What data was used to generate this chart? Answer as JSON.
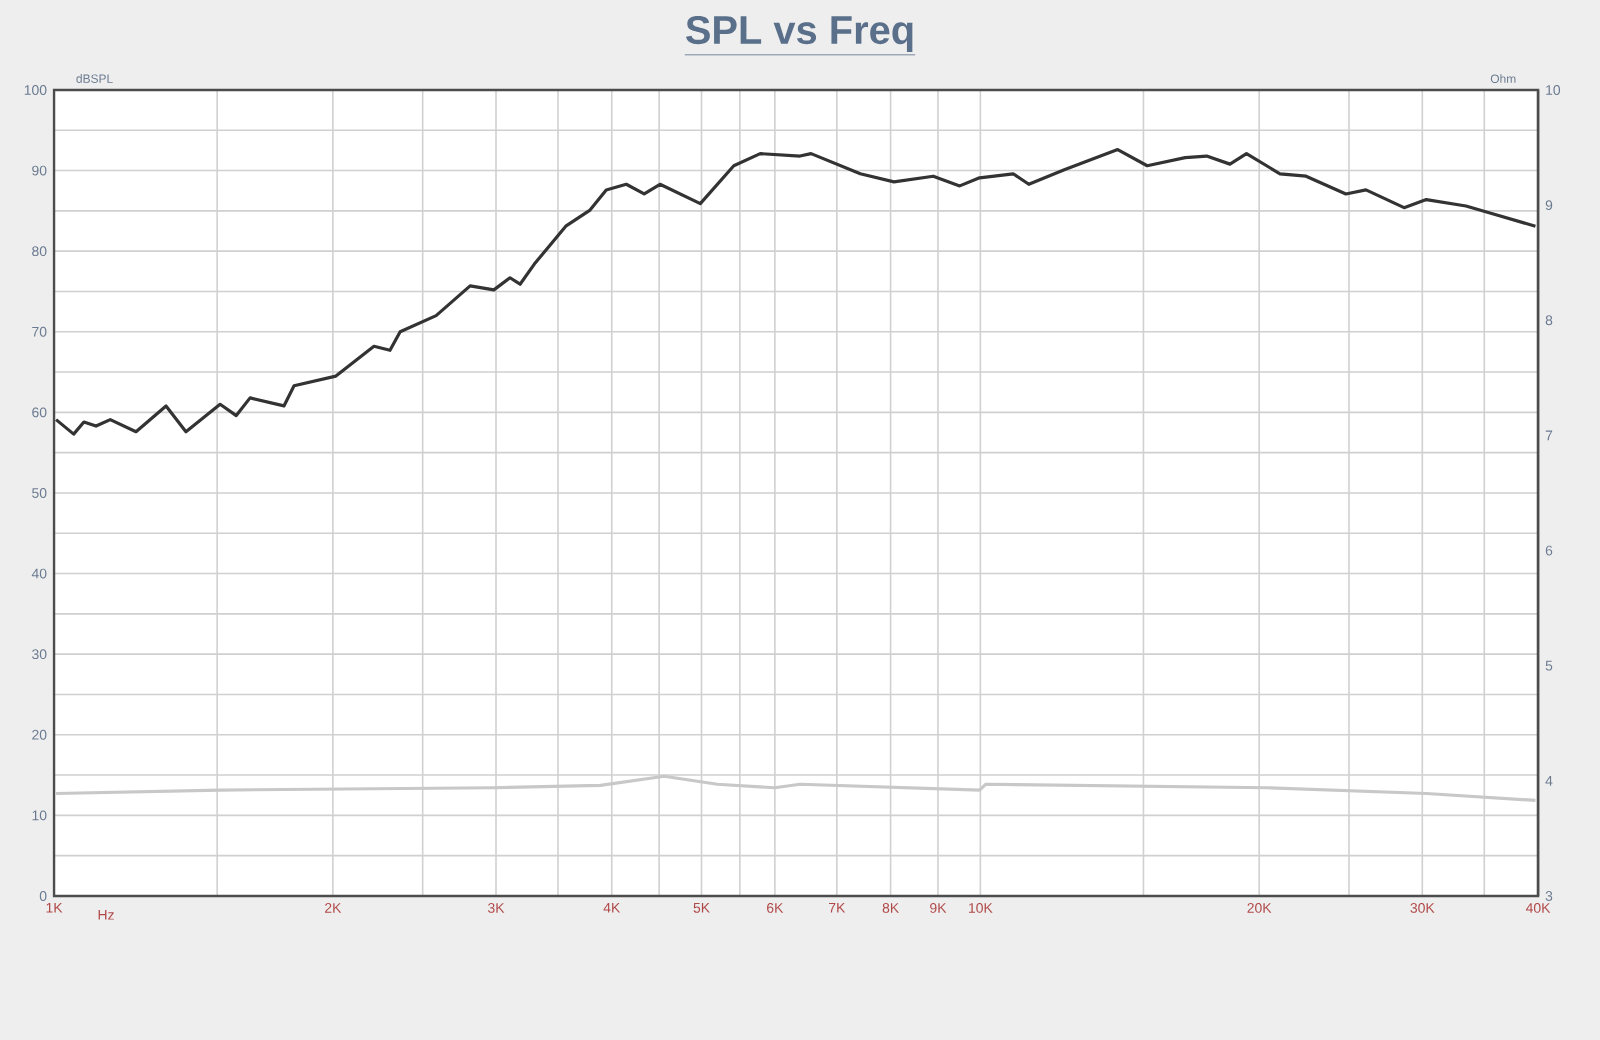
{
  "chart_data": {
    "type": "line",
    "title": "SPL vs Freq",
    "xlabel": "Hz",
    "ylabel": "dBSPL",
    "y2label": "Ohm",
    "log": "x",
    "grid": true,
    "marker": "none",
    "line_style": "solid",
    "xlim": [
      1000,
      40000
    ],
    "ylim": [
      0,
      100
    ],
    "y2lim": [
      3,
      10
    ],
    "xticks": [
      {
        "value": 1000,
        "label": "1K"
      },
      {
        "value": 1500,
        "label": null
      },
      {
        "value": 2000,
        "label": "2K"
      },
      {
        "value": 2500,
        "label": null
      },
      {
        "value": 3000,
        "label": "3K"
      },
      {
        "value": 3500,
        "label": null
      },
      {
        "value": 4000,
        "label": "4K"
      },
      {
        "value": 4500,
        "label": null
      },
      {
        "value": 5000,
        "label": "5K"
      },
      {
        "value": 5500,
        "label": null
      },
      {
        "value": 6000,
        "label": "6K"
      },
      {
        "value": 7000,
        "label": "7K"
      },
      {
        "value": 8000,
        "label": "8K"
      },
      {
        "value": 9000,
        "label": "9K"
      },
      {
        "value": 10000,
        "label": "10K"
      },
      {
        "value": 15000,
        "label": null
      },
      {
        "value": 20000,
        "label": "20K"
      },
      {
        "value": 25000,
        "label": null
      },
      {
        "value": 30000,
        "label": "30K"
      },
      {
        "value": 35000,
        "label": null
      },
      {
        "value": 40000,
        "label": "40K"
      }
    ],
    "yticks": [
      0,
      {
        "value": 5,
        "label": null
      },
      10,
      {
        "value": 15,
        "label": null
      },
      20,
      {
        "value": 25,
        "label": null
      },
      30,
      {
        "value": 35,
        "label": null
      },
      40,
      {
        "value": 45,
        "label": null
      },
      50,
      {
        "value": 55,
        "label": null
      },
      60,
      {
        "value": 65,
        "label": null
      },
      70,
      {
        "value": 75,
        "label": null
      },
      80,
      {
        "value": 85,
        "label": null
      },
      90,
      {
        "value": 95,
        "label": null
      },
      100
    ],
    "y2ticks": [
      3,
      4,
      5,
      6,
      7,
      8,
      9,
      10
    ],
    "series": [
      {
        "color": "#333333",
        "x": [
          1005,
          1050,
          1077,
          1110,
          1150,
          1226,
          1321,
          1388,
          1511,
          1573,
          1628,
          1771,
          1816,
          2015,
          2215,
          2305,
          2364,
          2585,
          2813,
          2984,
          3106,
          3185,
          3300,
          3568,
          3790,
          3946,
          4147,
          4336,
          4510,
          4985,
          5418,
          5786,
          6387,
          6565,
          7420,
          8068,
          8895,
          9500,
          9980,
          10850,
          11280,
          12320,
          14070,
          15140,
          16640,
          17550,
          18600,
          19380,
          21060,
          22470,
          24810,
          26080,
          28670,
          30300,
          33440,
          35800,
          39750
        ],
        "values": [
          59.1,
          57.3,
          58.8,
          58.3,
          59.1,
          57.6,
          60.8,
          57.6,
          61.0,
          59.6,
          61.8,
          60.8,
          63.3,
          64.5,
          68.2,
          67.7,
          70.0,
          72.0,
          75.7,
          75.2,
          76.7,
          75.9,
          78.4,
          83.1,
          85.1,
          87.6,
          88.3,
          87.1,
          88.3,
          85.9,
          90.6,
          92.1,
          91.8,
          92.1,
          89.6,
          88.6,
          89.3,
          88.1,
          89.1,
          89.6,
          88.3,
          90.1,
          92.6,
          90.6,
          91.6,
          91.8,
          90.8,
          92.1,
          89.6,
          89.3,
          87.1,
          87.6,
          85.4,
          86.4,
          85.6,
          84.6,
          83.1
        ]
      },
      {
        "color": "#c8c8c8",
        "axis": "y2",
        "x": [
          1005,
          1511,
          2984,
          3890,
          4557,
          5200,
          5994,
          6390,
          9980,
          10130,
          20400,
          30300,
          39750
        ],
        "values": [
          3.89,
          3.92,
          3.94,
          3.96,
          4.04,
          3.97,
          3.94,
          3.97,
          3.92,
          3.97,
          3.94,
          3.89,
          3.83
        ]
      }
    ]
  }
}
